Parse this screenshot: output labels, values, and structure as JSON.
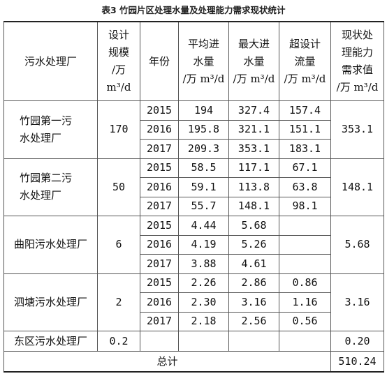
{
  "title": "表3 竹园片区处理水量及处理能力需求现状统计",
  "headers": {
    "plant": "污水处理厂",
    "design": [
      "设计",
      "规模",
      "/万",
      "m³/d"
    ],
    "year": "年份",
    "avg": [
      "平均进",
      "水量",
      "/万 m³/d"
    ],
    "max": [
      "最大进",
      "水量",
      "/万 m³/d"
    ],
    "excess": [
      "超设计",
      "流量",
      "/万 m³/d"
    ],
    "demand": [
      "现状处",
      "理能力",
      "需求值",
      "/万 m³/d"
    ]
  },
  "plants": [
    {
      "name": [
        "竹园第一污",
        "水处理厂"
      ],
      "design": "170",
      "demand": "353.1",
      "rows": [
        {
          "year": "2015",
          "avg": "194",
          "max": "327.4",
          "excess": "157.4"
        },
        {
          "year": "2016",
          "avg": "195.8",
          "max": "321.1",
          "excess": "151.1"
        },
        {
          "year": "2017",
          "avg": "209.3",
          "max": "353.1",
          "excess": "183.1"
        }
      ]
    },
    {
      "name": [
        "竹园第二污",
        "水处理厂"
      ],
      "design": "50",
      "demand": "148.1",
      "rows": [
        {
          "year": "2015",
          "avg": "58.5",
          "max": "117.1",
          "excess": "67.1"
        },
        {
          "year": "2016",
          "avg": "59.1",
          "max": "113.8",
          "excess": "63.8"
        },
        {
          "year": "2017",
          "avg": "55.7",
          "max": "148.1",
          "excess": "98.1"
        }
      ]
    },
    {
      "name": [
        "曲阳污水处理厂"
      ],
      "design": "6",
      "demand": "5.68",
      "rows": [
        {
          "year": "2015",
          "avg": "4.44",
          "max": "5.68",
          "excess": ""
        },
        {
          "year": "2016",
          "avg": "4.19",
          "max": "5.26",
          "excess": ""
        },
        {
          "year": "2017",
          "avg": "3.88",
          "max": "4.61",
          "excess": ""
        }
      ]
    },
    {
      "name": [
        "泗塘污水处理厂"
      ],
      "design": "2",
      "demand": "3.16",
      "rows": [
        {
          "year": "2015",
          "avg": "2.26",
          "max": "2.86",
          "excess": "0.86"
        },
        {
          "year": "2016",
          "avg": "2.30",
          "max": "3.16",
          "excess": "1.16"
        },
        {
          "year": "2017",
          "avg": "2.18",
          "max": "2.56",
          "excess": "0.56"
        }
      ]
    }
  ],
  "single": {
    "name": "东区污水处理厂",
    "design": "0.2",
    "demand": "0.20"
  },
  "total": {
    "label": "总计",
    "value": "510.24"
  }
}
